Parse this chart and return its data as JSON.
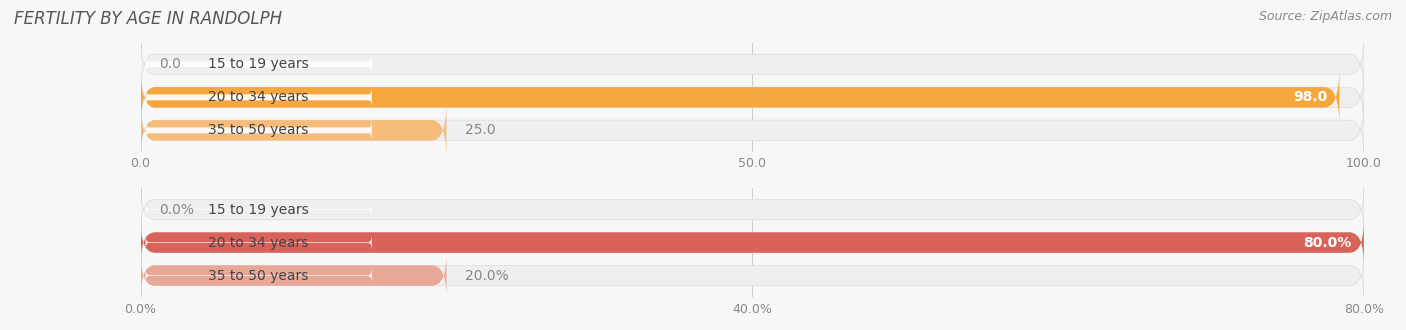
{
  "title": "FERTILITY BY AGE IN RANDOLPH",
  "source": "Source: ZipAtlas.com",
  "chart1": {
    "categories": [
      "15 to 19 years",
      "20 to 34 years",
      "35 to 50 years"
    ],
    "values": [
      0.0,
      98.0,
      25.0
    ],
    "max_val": 100.0,
    "tick_vals": [
      0.0,
      50.0,
      100.0
    ],
    "tick_labels": [
      "0.0",
      "50.0",
      "100.0"
    ],
    "bar_colors": [
      "#f2b98a",
      "#f5a63c",
      "#f5bc7a"
    ],
    "bar_bg_color": "#f0eeee",
    "label_color": "#888888",
    "value_inside_color": "#ffffff",
    "value_outside_color": "#888888"
  },
  "chart2": {
    "categories": [
      "15 to 19 years",
      "20 to 34 years",
      "35 to 50 years"
    ],
    "values": [
      0.0,
      80.0,
      20.0
    ],
    "max_val": 80.0,
    "tick_vals": [
      0.0,
      40.0,
      80.0
    ],
    "tick_labels": [
      "0.0%",
      "40.0%",
      "80.0%"
    ],
    "bar_colors": [
      "#e8a898",
      "#d9635a",
      "#e8a898"
    ],
    "bar_bg_color": "#f0eeee",
    "label_color": "#888888",
    "value_inside_color": "#ffffff",
    "value_outside_color": "#888888"
  },
  "bg_color": "#f7f7f7",
  "white_label_bg": "#ffffff",
  "bar_height": 0.62,
  "title_fontsize": 12,
  "source_fontsize": 9,
  "label_fontsize": 10,
  "tick_fontsize": 9,
  "cat_fontsize": 10
}
